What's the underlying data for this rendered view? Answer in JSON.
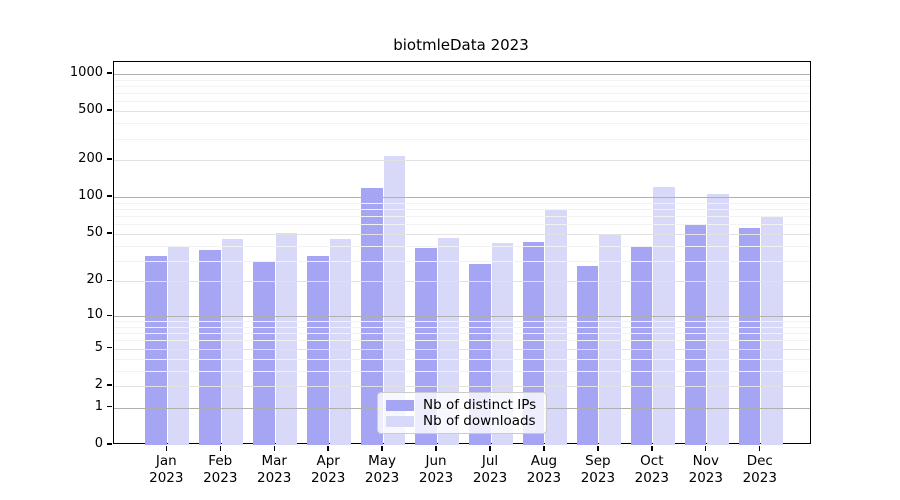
{
  "chart_data": {
    "type": "bar",
    "title": "biotmleData 2023",
    "categories": [
      "Jan",
      "Feb",
      "Mar",
      "Apr",
      "May",
      "Jun",
      "Jul",
      "Aug",
      "Sep",
      "Oct",
      "Nov",
      "Dec"
    ],
    "x_tick_year": "2023",
    "series": [
      {
        "name": "Nb of distinct IPs",
        "color": "#a5a5f3",
        "values": [
          33,
          37,
          29,
          33,
          118,
          38,
          28,
          43,
          27,
          39,
          60,
          56
        ]
      },
      {
        "name": "Nb of downloads",
        "color": "#d8d8f8",
        "values": [
          39,
          45,
          51,
          45,
          215,
          46,
          42,
          78,
          49,
          120,
          107,
          69
        ]
      }
    ],
    "y_ticks": [
      1000,
      500,
      200,
      100,
      50,
      20,
      10,
      5,
      2,
      1,
      0
    ],
    "y_scale": "log1p",
    "ylim": [
      0,
      1250
    ],
    "grid": true,
    "legend_position": "lower center",
    "colors": {
      "grid_major": "#b0b0b0",
      "grid_mid": "#e2e2e2",
      "grid_minor": "#f2f2f2",
      "spine": "#000000",
      "text": "#000000",
      "legend_border": "#cccccc"
    }
  }
}
